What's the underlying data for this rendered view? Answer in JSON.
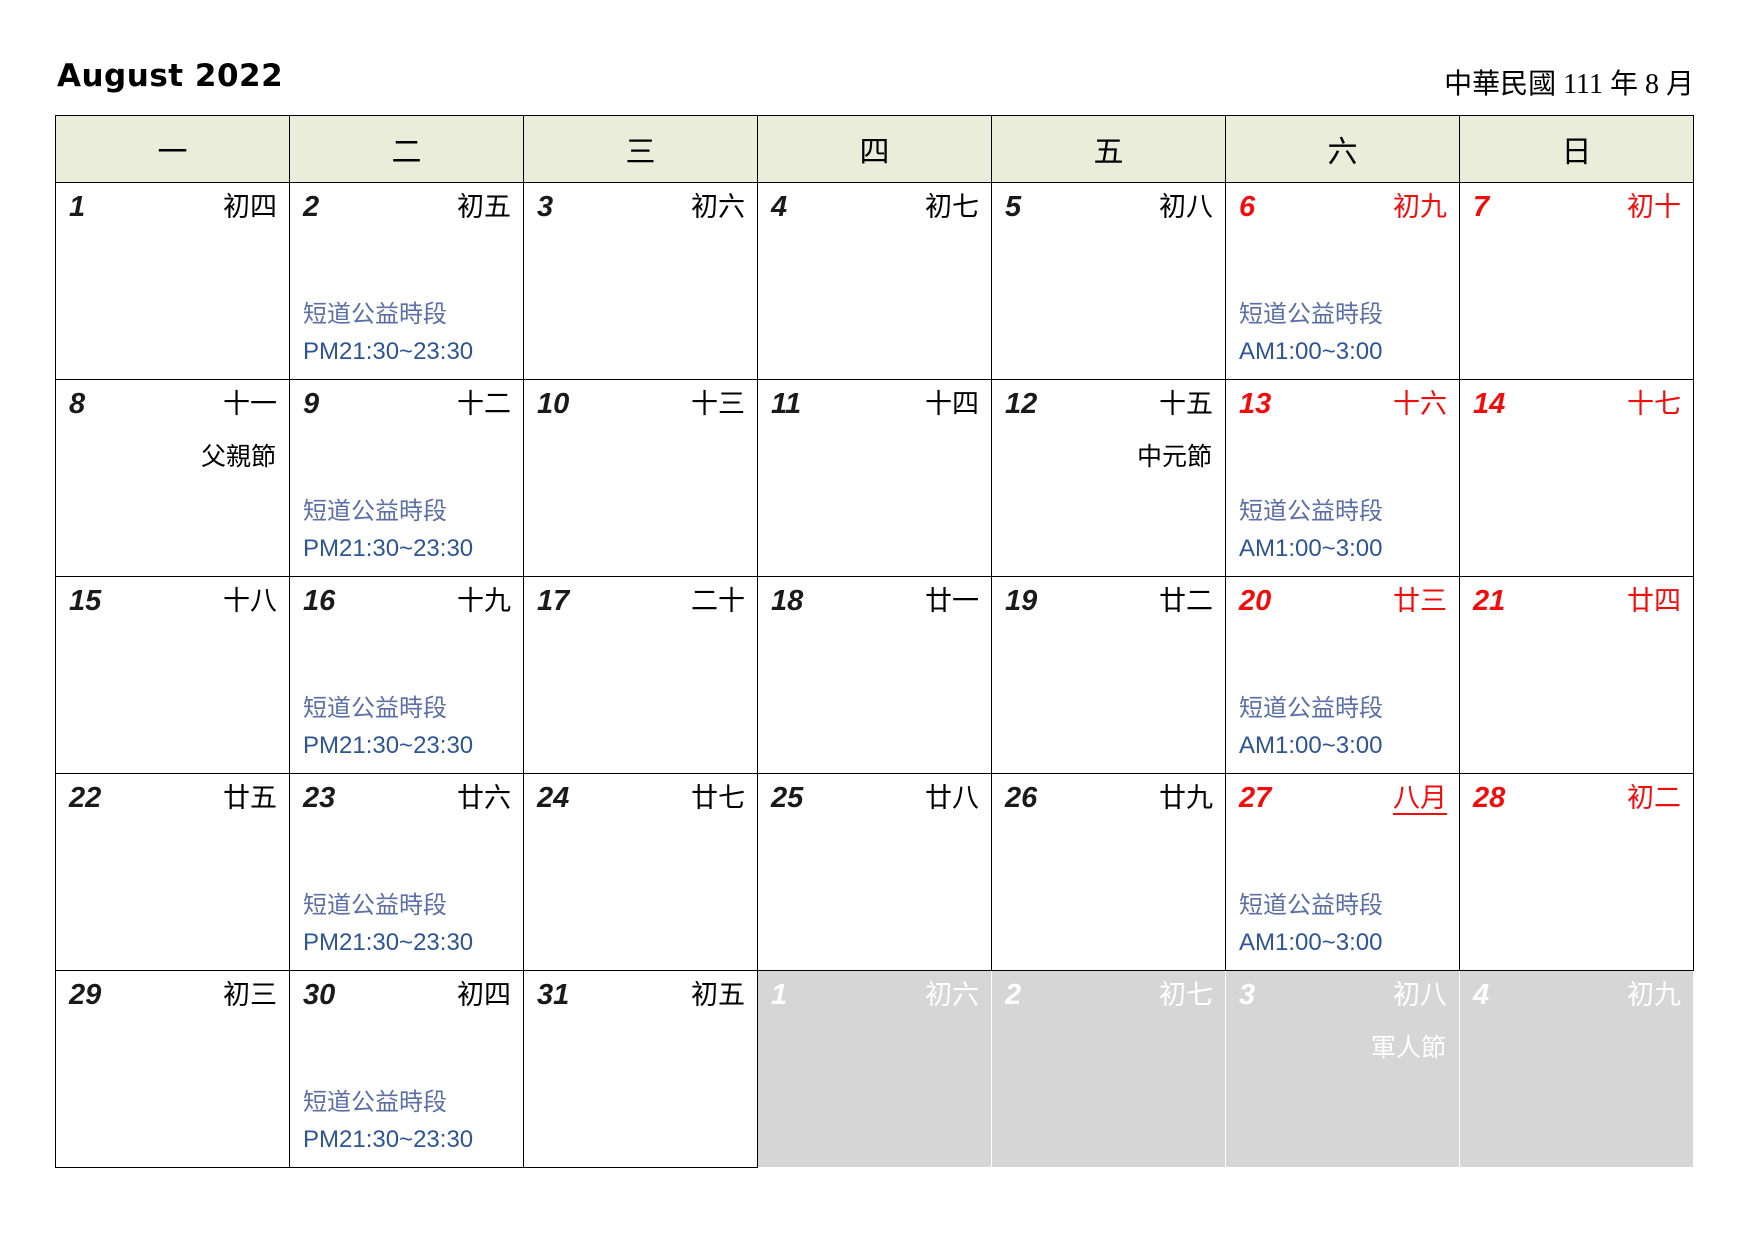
{
  "page": {
    "title": "August 2022",
    "roc_date": "中華民國 111 年 8 月"
  },
  "weekday_headers": [
    "一",
    "二",
    "三",
    "四",
    "五",
    "六",
    "日"
  ],
  "event_labels": {
    "name": "短道公益時段",
    "pm": "PM21:30~23:30",
    "am": "AM1:00~3:00"
  },
  "colors": {
    "header_bg": "#E9EDDA",
    "grid_border": "#000000",
    "weekend_red": "#F20D0D",
    "event_label_blue": "#5B6FA5",
    "event_time_blue": "#2F5496",
    "other_month_bg": "#D6D6D6",
    "other_month_text": "#FFFFFF"
  },
  "weeks": [
    [
      {
        "day": "1",
        "lunar": "初四"
      },
      {
        "day": "2",
        "lunar": "初五",
        "event": "pm"
      },
      {
        "day": "3",
        "lunar": "初六"
      },
      {
        "day": "4",
        "lunar": "初七"
      },
      {
        "day": "5",
        "lunar": "初八"
      },
      {
        "day": "6",
        "lunar": "初九",
        "weekend": true,
        "event": "am"
      },
      {
        "day": "7",
        "lunar": "初十",
        "weekend": true
      }
    ],
    [
      {
        "day": "8",
        "lunar": "十一",
        "holiday": "父親節"
      },
      {
        "day": "9",
        "lunar": "十二",
        "event": "pm"
      },
      {
        "day": "10",
        "lunar": "十三"
      },
      {
        "day": "11",
        "lunar": "十四"
      },
      {
        "day": "12",
        "lunar": "十五",
        "holiday": "中元節"
      },
      {
        "day": "13",
        "lunar": "十六",
        "weekend": true,
        "event": "am"
      },
      {
        "day": "14",
        "lunar": "十七",
        "weekend": true
      }
    ],
    [
      {
        "day": "15",
        "lunar": "十八"
      },
      {
        "day": "16",
        "lunar": "十九",
        "event": "pm"
      },
      {
        "day": "17",
        "lunar": "二十"
      },
      {
        "day": "18",
        "lunar": "廿一"
      },
      {
        "day": "19",
        "lunar": "廿二"
      },
      {
        "day": "20",
        "lunar": "廿三",
        "weekend": true,
        "event": "am"
      },
      {
        "day": "21",
        "lunar": "廿四",
        "weekend": true
      }
    ],
    [
      {
        "day": "22",
        "lunar": "廿五"
      },
      {
        "day": "23",
        "lunar": "廿六",
        "event": "pm"
      },
      {
        "day": "24",
        "lunar": "廿七"
      },
      {
        "day": "25",
        "lunar": "廿八"
      },
      {
        "day": "26",
        "lunar": "廿九"
      },
      {
        "day": "27",
        "lunar": "八月",
        "weekend": true,
        "event": "am",
        "lunar_underline": true
      },
      {
        "day": "28",
        "lunar": "初二",
        "weekend": true
      }
    ],
    [
      {
        "day": "29",
        "lunar": "初三"
      },
      {
        "day": "30",
        "lunar": "初四",
        "event": "pm"
      },
      {
        "day": "31",
        "lunar": "初五"
      },
      {
        "day": "1",
        "lunar": "初六",
        "other_month": true
      },
      {
        "day": "2",
        "lunar": "初七",
        "other_month": true
      },
      {
        "day": "3",
        "lunar": "初八",
        "other_month": true,
        "holiday": "軍人節"
      },
      {
        "day": "4",
        "lunar": "初九",
        "other_month": true
      }
    ]
  ]
}
